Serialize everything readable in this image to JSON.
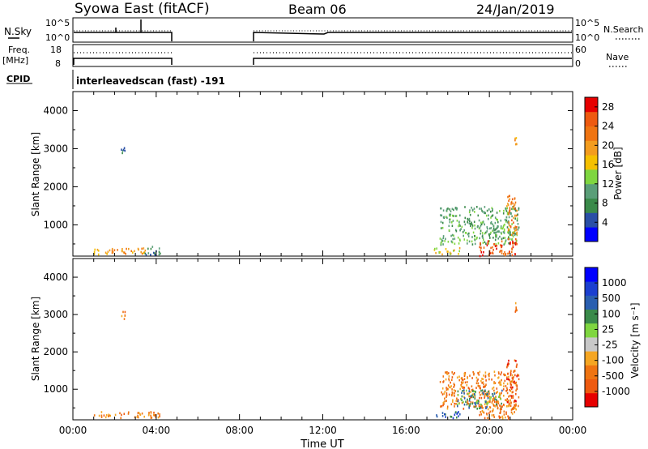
{
  "header": {
    "station": "Syowa East (fitACF)",
    "beam": "Beam 06",
    "date": "24/Jan/2019"
  },
  "top_panels": {
    "nsky_label": "N.Sky",
    "nsky_ticks": [
      "10^5",
      "10^0"
    ],
    "nsearch_label": "N.Search",
    "nsearch_ticks": [
      "10^5",
      "10^0"
    ],
    "freq_label_line1": "Freq.",
    "freq_label_line2": "[MHz]",
    "freq_ticks": [
      "18",
      "8"
    ],
    "nave_label": "Nave",
    "nave_ticks": [
      "60",
      "0"
    ],
    "cpid_label": "CPID",
    "cpid_text": "interleavedscan (fast) -191"
  },
  "colors": {
    "power_scale": [
      "#0000ff",
      "#2a4fa6",
      "#3a8a4a",
      "#5a9e78",
      "#7fd640",
      "#f5c000",
      "#f39c1e",
      "#ef7412",
      "#ee5a10",
      "#e60000"
    ],
    "velocity_scale": [
      "#e60000",
      "#ee5a10",
      "#ef7412",
      "#f5a623",
      "#c8c8c8",
      "#7fd640",
      "#3a8a4a",
      "#2a5fb0",
      "#1b3fd0",
      "#0000ff"
    ]
  },
  "chart_data": [
    {
      "type": "heatmap",
      "title": "",
      "xlabel": "",
      "ylabel": "Slant Range [km]",
      "x_range_hours": [
        0,
        24
      ],
      "x_ticks": [
        "00:00",
        "04:00",
        "08:00",
        "12:00",
        "16:00",
        "20:00",
        "00:00"
      ],
      "ylim": [
        180,
        4500
      ],
      "y_ticks": [
        1000,
        2000,
        3000,
        4000
      ],
      "colorbar": {
        "label": "Power [dB]",
        "ticks": [
          "4",
          "8",
          "12",
          "16",
          "20",
          "24",
          "28"
        ],
        "range": [
          0,
          30
        ]
      },
      "clusters": [
        {
          "x": [
            1.0,
            3.6
          ],
          "y": [
            250,
            420
          ],
          "level": 6
        },
        {
          "x": [
            3.4,
            4.2
          ],
          "y": [
            220,
            450
          ],
          "level": 2
        },
        {
          "x": [
            17.3,
            18.6
          ],
          "y": [
            250,
            420
          ],
          "level": 5
        },
        {
          "x": [
            17.6,
            21.4
          ],
          "y": [
            500,
            1500
          ],
          "level": 3
        },
        {
          "x": [
            19.5,
            21.3
          ],
          "y": [
            200,
            600
          ],
          "level": 8
        },
        {
          "x": [
            20.8,
            21.3
          ],
          "y": [
            600,
            1800
          ],
          "level": 7
        },
        {
          "x": [
            2.3,
            2.5
          ],
          "y": [
            2900,
            3100
          ],
          "level": 2
        },
        {
          "x": [
            21.2,
            21.3
          ],
          "y": [
            3100,
            3350
          ],
          "level": 6
        }
      ]
    },
    {
      "type": "heatmap",
      "title": "",
      "xlabel": "Time UT",
      "ylabel": "Slant Range [km]",
      "x_range_hours": [
        0,
        24
      ],
      "x_ticks": [
        "00:00",
        "04:00",
        "08:00",
        "12:00",
        "16:00",
        "20:00",
        "00:00"
      ],
      "ylim": [
        180,
        4500
      ],
      "y_ticks": [
        1000,
        2000,
        3000,
        4000
      ],
      "colorbar": {
        "label": "Velocity [m s⁻¹]",
        "ticks": [
          "1000",
          "500",
          "100",
          "25",
          "-25",
          "-100",
          "-500",
          "-1000"
        ],
        "range": [
          -1250,
          1250
        ]
      },
      "clusters": [
        {
          "x": [
            1.0,
            4.2
          ],
          "y": [
            250,
            420
          ],
          "level": 2
        },
        {
          "x": [
            17.3,
            18.6
          ],
          "y": [
            250,
            420
          ],
          "level": 7
        },
        {
          "x": [
            17.6,
            21.4
          ],
          "y": [
            500,
            1500
          ],
          "level": 2
        },
        {
          "x": [
            18.4,
            20.6
          ],
          "y": [
            500,
            1000
          ],
          "level": 6
        },
        {
          "x": [
            19.5,
            21.3
          ],
          "y": [
            200,
            600
          ],
          "level": 2
        },
        {
          "x": [
            20.8,
            21.3
          ],
          "y": [
            600,
            1800
          ],
          "level": 1
        },
        {
          "x": [
            2.3,
            2.5
          ],
          "y": [
            2900,
            3100
          ],
          "level": 2
        },
        {
          "x": [
            21.2,
            21.3
          ],
          "y": [
            3100,
            3350
          ],
          "level": 2
        }
      ]
    }
  ]
}
